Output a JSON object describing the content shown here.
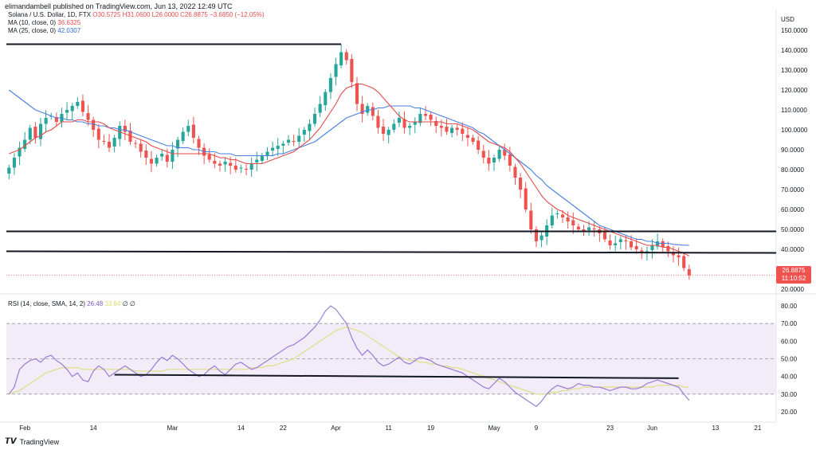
{
  "header": {
    "published": "elimandambell published on TradingView.com, Jun 13, 2022 12:49 UTC"
  },
  "legend": {
    "symbol": "Solana / U.S. Dollar, 1D, FTX",
    "ohlc": "O30.5725 H31.0600 L26.0000 C26.8875 −3.6850 (−12.05%)",
    "ma10_label": "MA (10, close, 0)",
    "ma10_value": "36.6325",
    "ma25_label": "MA (25, close, 0)",
    "ma25_value": "42.0307"
  },
  "rsi_legend": {
    "label": "RSI (14, close, SMA, 14, 2)",
    "rsi_value": "26.48",
    "rsi_ma_value": "33.84",
    "extra": "∅ ∅"
  },
  "price_tag": {
    "price": "26.8875",
    "countdown": "11:10:52"
  },
  "footer": {
    "logo_text": "TradingView"
  },
  "colors": {
    "up": "#26a69a",
    "down": "#ef5350",
    "ma10": "#e64a4a",
    "ma25": "#4a7fe0",
    "rsi": "#9c7ad6",
    "rsi_ma": "#dede86",
    "rsi_band": "#ede7f6"
  },
  "chart_data": [
    {
      "type": "candlestick",
      "title": "Solana / U.S. Dollar, 1D, FTX",
      "currency_label": "USD",
      "y_ticks": [
        "150.0000",
        "140.0000",
        "130.0000",
        "120.0000",
        "110.0000",
        "100.0000",
        "90.0000",
        "80.0000",
        "70.0000",
        "60.0000",
        "50.0000",
        "40.0000",
        "30.0000",
        "20.0000"
      ],
      "ylim": [
        20,
        150
      ],
      "x_tick_labels": [
        "Feb",
        "14",
        "Mar",
        "14",
        "22",
        "Apr",
        "11",
        "19",
        "May",
        "9",
        "23",
        "Jun",
        "13",
        "21"
      ],
      "x_tick_days": [
        3,
        16,
        31,
        44,
        52,
        62,
        72,
        80,
        92,
        100,
        114,
        122,
        134,
        142
      ],
      "close_series": [
        81,
        86,
        91,
        95,
        101,
        96,
        103,
        106,
        107,
        104,
        108,
        110,
        112,
        114,
        109,
        105,
        100,
        95,
        94,
        91,
        96,
        102,
        99,
        94,
        93,
        89,
        86,
        83,
        86,
        88,
        84,
        90,
        95,
        99,
        102,
        96,
        91,
        87,
        85,
        83,
        82,
        84,
        82,
        80,
        81,
        80,
        83,
        85,
        87,
        89,
        91,
        92,
        93,
        95,
        94,
        97,
        100,
        103,
        108,
        113,
        119,
        126,
        133,
        139,
        135,
        124,
        113,
        108,
        112,
        107,
        101,
        98,
        100,
        103,
        106,
        101,
        102,
        104,
        108,
        107,
        105,
        102,
        101,
        99,
        101,
        100,
        98,
        96,
        94,
        90,
        86,
        83,
        86,
        90,
        87,
        82,
        76,
        70,
        60,
        50,
        44,
        47,
        52,
        57,
        58,
        56,
        54,
        52,
        50,
        49,
        51,
        50,
        48,
        45,
        42,
        43,
        45,
        44,
        41,
        40,
        38,
        39,
        42,
        44,
        41,
        39,
        37,
        36,
        30.57,
        26.89
      ],
      "ma10": [
        88,
        89,
        90,
        92,
        94,
        96,
        97,
        99,
        100,
        102,
        104,
        104,
        104,
        105,
        105,
        104,
        104,
        104,
        103,
        101,
        100,
        99,
        98,
        97,
        96,
        95,
        94,
        92,
        91,
        90,
        89,
        88,
        88,
        88,
        88,
        88,
        88,
        88,
        88,
        87,
        86,
        86,
        85,
        85,
        84,
        83,
        83,
        83,
        83,
        84,
        85,
        86,
        87,
        88,
        89,
        91,
        93,
        95,
        98,
        101,
        105,
        109,
        113,
        118,
        121,
        122,
        123,
        123,
        122,
        121,
        119,
        116,
        113,
        110,
        107,
        105,
        104,
        104,
        104,
        104,
        104,
        104,
        104,
        103,
        103,
        103,
        102,
        101,
        100,
        98,
        96,
        94,
        93,
        92,
        91,
        89,
        86,
        83,
        79,
        75,
        71,
        67,
        64,
        62,
        60,
        59,
        57,
        56,
        55,
        54,
        53,
        52,
        51,
        50,
        49,
        48,
        47,
        46,
        45,
        44,
        43,
        42,
        42,
        42,
        41,
        41,
        40,
        39,
        38,
        36.63
      ],
      "ma25": [
        120,
        118,
        116,
        114,
        112,
        110,
        109,
        108,
        107,
        106,
        106,
        105,
        105,
        104,
        104,
        103,
        103,
        102,
        102,
        101,
        101,
        100,
        100,
        99,
        98,
        97,
        96,
        95,
        94,
        93,
        92,
        92,
        91,
        91,
        91,
        90,
        90,
        89,
        89,
        89,
        88,
        88,
        88,
        87,
        87,
        87,
        87,
        87,
        87,
        87,
        87,
        88,
        88,
        89,
        90,
        91,
        92,
        93,
        94,
        96,
        98,
        100,
        102,
        104,
        106,
        107,
        108,
        109,
        110,
        110,
        111,
        111,
        112,
        112,
        112,
        112,
        112,
        111,
        111,
        110,
        109,
        108,
        107,
        106,
        105,
        104,
        103,
        102,
        101,
        99,
        98,
        96,
        94,
        92,
        90,
        88,
        86,
        84,
        82,
        80,
        77,
        75,
        72,
        70,
        68,
        66,
        64,
        62,
        60,
        58,
        56,
        54,
        52,
        51,
        50,
        49,
        48,
        47,
        46,
        45,
        45,
        44,
        44,
        43,
        43,
        43,
        42.5,
        42.3,
        42.1,
        42.03
      ],
      "horizontal_lines": [
        143,
        49,
        39
      ],
      "last_price": 26.8875
    },
    {
      "type": "line",
      "title": "RSI (14, close, SMA, 14, 2)",
      "y_ticks": [
        "80.00",
        "70.00",
        "60.00",
        "50.00",
        "40.00",
        "30.00",
        "20.00"
      ],
      "ylim": [
        15,
        85
      ],
      "bands": [
        30,
        50,
        70
      ],
      "rsi": [
        30,
        34,
        44,
        47,
        49,
        50,
        48,
        51,
        52,
        49,
        47,
        44,
        40,
        42,
        38,
        37,
        43,
        46,
        44,
        40,
        42,
        44,
        46,
        44,
        42,
        40,
        41,
        44,
        48,
        51,
        49,
        52,
        50,
        47,
        44,
        42,
        40,
        41,
        44,
        46,
        43,
        41,
        44,
        47,
        48,
        46,
        44,
        45,
        47,
        49,
        51,
        53,
        55,
        57,
        58,
        60,
        62,
        65,
        68,
        72,
        77,
        80,
        78,
        74,
        70,
        62,
        56,
        52,
        55,
        52,
        48,
        46,
        47,
        49,
        51,
        48,
        47,
        49,
        51,
        50,
        49,
        47,
        46,
        45,
        44,
        43,
        42,
        40,
        38,
        36,
        34,
        33,
        36,
        39,
        37,
        34,
        31,
        29,
        27,
        25,
        23,
        26,
        30,
        33,
        35,
        34,
        33,
        34,
        36,
        35,
        35,
        34,
        34,
        33,
        32,
        33,
        34,
        34,
        33,
        33,
        34,
        36,
        37,
        38,
        37,
        36,
        35,
        34,
        30,
        26.48
      ],
      "rsi_ma": [
        30,
        31,
        32,
        34,
        36,
        38,
        40,
        42,
        43,
        44,
        45,
        45,
        45,
        45,
        44,
        44,
        44,
        44,
        44,
        44,
        44,
        44,
        44,
        44,
        43,
        43,
        43,
        43,
        43,
        43,
        44,
        44,
        44,
        44,
        44,
        44,
        44,
        44,
        44,
        44,
        44,
        44,
        44,
        44,
        44,
        44,
        45,
        45,
        45,
        46,
        46,
        47,
        48,
        49,
        50,
        52,
        54,
        56,
        58,
        60,
        62,
        64,
        66,
        67,
        68,
        67,
        66,
        65,
        63,
        61,
        59,
        57,
        55,
        53,
        51,
        50,
        49,
        49,
        48,
        48,
        47,
        47,
        46,
        46,
        45,
        45,
        44,
        43,
        42,
        41,
        40,
        39,
        38,
        37,
        36,
        35,
        34,
        33,
        32,
        31,
        30,
        30,
        30,
        31,
        31,
        32,
        32,
        33,
        33,
        34,
        34,
        34,
        34,
        34,
        34,
        34,
        34,
        34,
        34,
        34,
        34,
        34,
        34,
        35,
        35,
        35,
        35,
        35,
        34,
        33.84
      ],
      "trend_line": [
        41,
        39
      ]
    }
  ]
}
